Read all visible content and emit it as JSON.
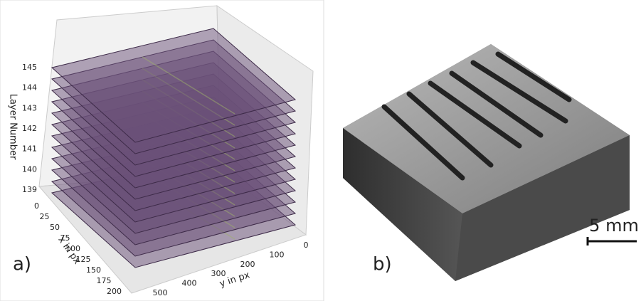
{
  "panel_a": {
    "label": "a)",
    "z_axis": {
      "label": "Layer Number",
      "ticks": [
        "139",
        "140",
        "141",
        "142",
        "143",
        "144",
        "145"
      ]
    },
    "x_axis": {
      "label": "x in px",
      "ticks": [
        "0",
        "25",
        "50",
        "75",
        "100",
        "125",
        "150",
        "175",
        "200"
      ]
    },
    "y_axis": {
      "label": "y in px",
      "ticks": [
        "0",
        "100",
        "200",
        "300",
        "400",
        "500"
      ]
    }
  },
  "panel_b": {
    "label": "b)",
    "scale_bar": "5 mm"
  }
}
